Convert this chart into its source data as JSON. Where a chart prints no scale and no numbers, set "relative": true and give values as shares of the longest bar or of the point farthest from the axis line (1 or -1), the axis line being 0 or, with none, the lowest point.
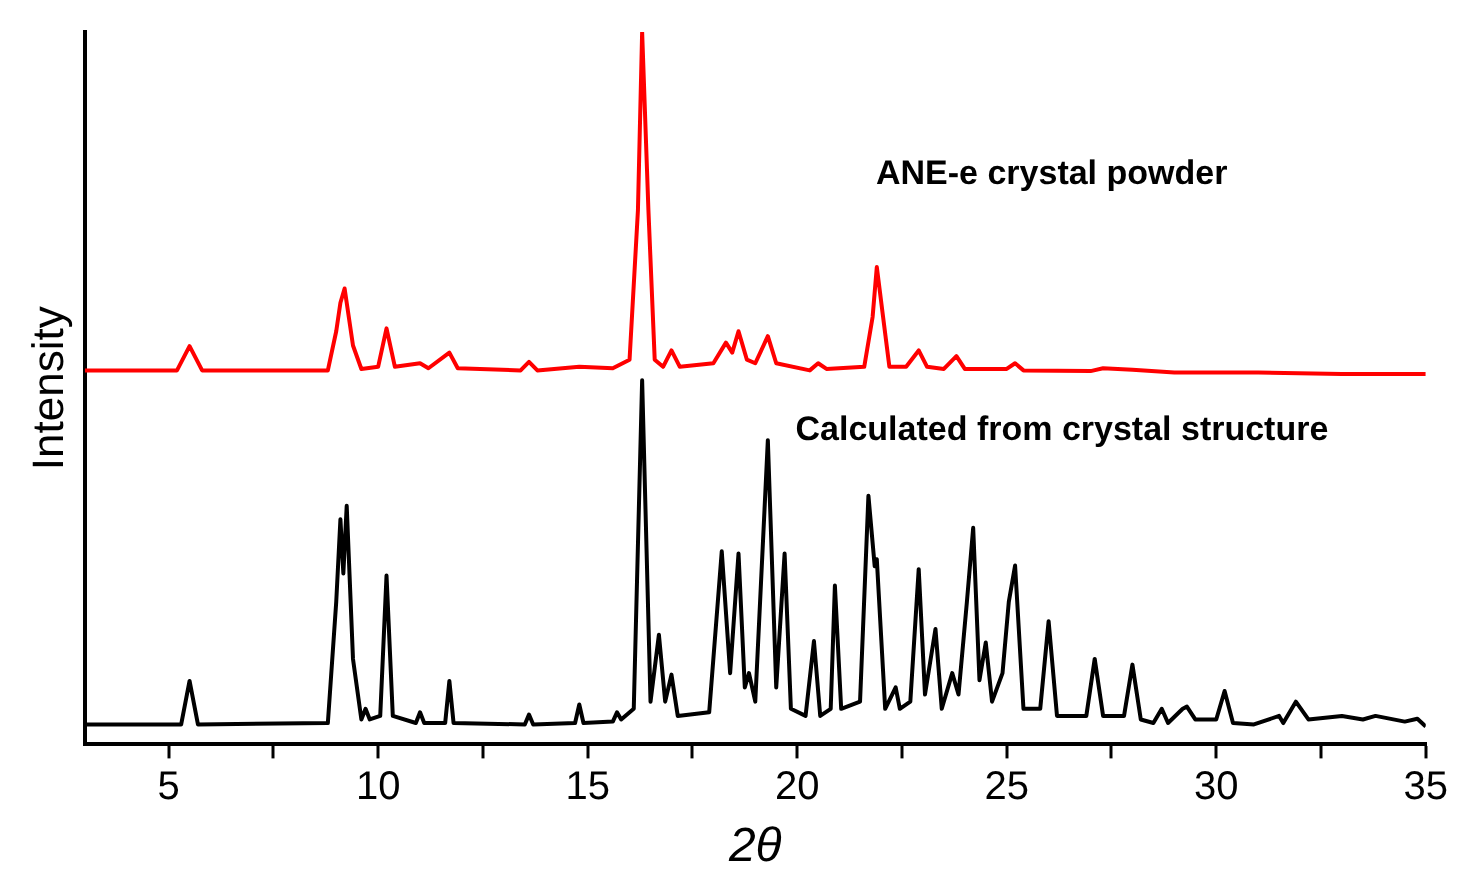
{
  "chart_data": {
    "type": "line",
    "relative": true,
    "xlabel": "2θ",
    "ylabel": "Intensity",
    "xlim": [
      3,
      35
    ],
    "xticks": [
      5,
      {
        "value": 7.5,
        "label": null
      },
      10,
      {
        "value": 12.5,
        "label": null
      },
      15,
      {
        "value": 17.5,
        "label": null
      },
      20,
      {
        "value": 22.5,
        "label": null
      },
      25,
      {
        "value": 27.5,
        "label": null
      },
      30,
      {
        "value": 32.5,
        "label": null
      },
      35
    ],
    "grid": false,
    "legend": false,
    "marker": "none",
    "line_style": "solid",
    "series": [
      {
        "name": "ANE-e crystal powder",
        "color": "#ff0000",
        "x": [
          3,
          5.2,
          5.5,
          5.8,
          8.8,
          9.0,
          9.1,
          9.2,
          9.4,
          9.6,
          10.0,
          10.2,
          10.4,
          11.0,
          11.2,
          11.7,
          11.9,
          13.4,
          13.6,
          13.8,
          14.8,
          15.6,
          16.0,
          16.2,
          16.3,
          16.45,
          16.6,
          16.8,
          17.0,
          17.2,
          18.0,
          18.3,
          18.45,
          18.6,
          18.8,
          19.0,
          19.3,
          19.5,
          20.3,
          20.5,
          20.7,
          21.6,
          21.8,
          21.9,
          22.05,
          22.2,
          22.6,
          22.9,
          23.1,
          23.5,
          23.8,
          24.0,
          25.0,
          25.2,
          25.4,
          27.0,
          27.3,
          28.0,
          29.0,
          31,
          33,
          35
        ],
        "values": [
          0.525,
          0.525,
          0.559,
          0.525,
          0.525,
          0.58,
          0.62,
          0.64,
          0.56,
          0.527,
          0.53,
          0.584,
          0.53,
          0.535,
          0.528,
          0.55,
          0.528,
          0.525,
          0.537,
          0.525,
          0.53,
          0.528,
          0.54,
          0.75,
          1.0,
          0.75,
          0.54,
          0.53,
          0.553,
          0.53,
          0.535,
          0.564,
          0.55,
          0.58,
          0.54,
          0.535,
          0.573,
          0.535,
          0.525,
          0.535,
          0.527,
          0.53,
          0.6,
          0.67,
          0.6,
          0.53,
          0.53,
          0.553,
          0.53,
          0.527,
          0.545,
          0.527,
          0.527,
          0.535,
          0.525,
          0.524,
          0.528,
          0.526,
          0.522,
          0.522,
          0.52,
          0.52
        ]
      },
      {
        "name": "Calculated from crystal structure",
        "color": "#000000",
        "x": [
          3,
          5.3,
          5.5,
          5.7,
          8.8,
          9.0,
          9.1,
          9.17,
          9.25,
          9.4,
          9.6,
          9.7,
          9.8,
          10.05,
          10.2,
          10.35,
          10.9,
          11.0,
          11.1,
          11.6,
          11.7,
          11.8,
          13.5,
          13.6,
          13.7,
          14.7,
          14.8,
          14.9,
          15.6,
          15.7,
          15.8,
          16.1,
          16.3,
          16.5,
          16.7,
          16.85,
          17.0,
          17.15,
          17.9,
          18.2,
          18.4,
          18.6,
          18.75,
          18.85,
          19.0,
          19.3,
          19.5,
          19.7,
          19.85,
          20.2,
          20.4,
          20.55,
          20.8,
          20.9,
          21.05,
          21.5,
          21.7,
          21.85,
          21.9,
          22.1,
          22.35,
          22.45,
          22.7,
          22.9,
          23.05,
          23.3,
          23.45,
          23.7,
          23.85,
          24.05,
          24.2,
          24.35,
          24.5,
          24.65,
          24.9,
          25.05,
          25.2,
          25.4,
          25.8,
          26.0,
          26.2,
          26.9,
          27.1,
          27.3,
          27.8,
          28.0,
          28.2,
          28.5,
          28.7,
          28.85,
          29.2,
          29.3,
          29.5,
          30.0,
          30.2,
          30.4,
          30.9,
          31.5,
          31.6,
          31.9,
          32.2,
          33.0,
          33.5,
          33.8,
          34.5,
          34.8,
          35
        ],
        "values": [
          0.028,
          0.028,
          0.089,
          0.028,
          0.03,
          0.2,
          0.316,
          0.24,
          0.335,
          0.12,
          0.035,
          0.05,
          0.035,
          0.04,
          0.237,
          0.04,
          0.03,
          0.045,
          0.03,
          0.03,
          0.089,
          0.03,
          0.028,
          0.042,
          0.028,
          0.03,
          0.056,
          0.03,
          0.032,
          0.045,
          0.035,
          0.05,
          0.511,
          0.06,
          0.154,
          0.06,
          0.098,
          0.04,
          0.045,
          0.271,
          0.1,
          0.268,
          0.08,
          0.1,
          0.06,
          0.427,
          0.08,
          0.268,
          0.05,
          0.04,
          0.145,
          0.04,
          0.05,
          0.223,
          0.05,
          0.06,
          0.349,
          0.25,
          0.26,
          0.05,
          0.08,
          0.05,
          0.06,
          0.246,
          0.07,
          0.162,
          0.05,
          0.1,
          0.07,
          0.2,
          0.304,
          0.09,
          0.143,
          0.06,
          0.1,
          0.2,
          0.251,
          0.05,
          0.05,
          0.173,
          0.04,
          0.04,
          0.12,
          0.04,
          0.04,
          0.112,
          0.035,
          0.03,
          0.05,
          0.03,
          0.05,
          0.053,
          0.035,
          0.035,
          0.075,
          0.03,
          0.028,
          0.04,
          0.03,
          0.06,
          0.035,
          0.04,
          0.035,
          0.04,
          0.032,
          0.036,
          0.025
        ]
      }
    ]
  }
}
